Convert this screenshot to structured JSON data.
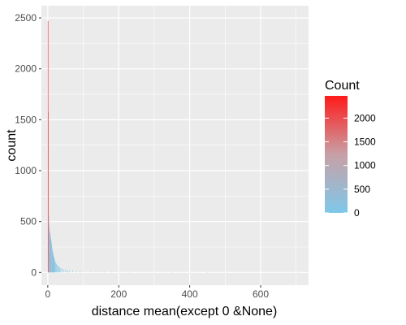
{
  "chart_data": {
    "type": "bar",
    "title": "",
    "xlabel": "distance mean(except 0 &None)",
    "ylabel": "count",
    "xlim": [
      -18,
      735
    ],
    "ylim": [
      -125,
      2620
    ],
    "x_ticks": [
      0,
      200,
      400,
      600
    ],
    "y_ticks": [
      0,
      500,
      1000,
      1500,
      2000,
      2500
    ],
    "x_tick_labels": [
      "0",
      "200",
      "400",
      "600"
    ],
    "y_tick_labels": [
      "0",
      "500",
      "1000",
      "1500",
      "2000",
      "2500"
    ],
    "grid": true,
    "bin_width": 1,
    "x": [
      0,
      1,
      2,
      3,
      4,
      5,
      6,
      7,
      8,
      9,
      10,
      11,
      12,
      13,
      14,
      15,
      16,
      17,
      18,
      19,
      20,
      22,
      24,
      26,
      28,
      30,
      33,
      36,
      40,
      45,
      50,
      55,
      60,
      70,
      80,
      90,
      100,
      120,
      140,
      160,
      180,
      200,
      230,
      260,
      300,
      350,
      400,
      450,
      500,
      700
    ],
    "counts": [
      2470,
      1580,
      560,
      470,
      430,
      400,
      380,
      350,
      330,
      310,
      280,
      260,
      230,
      210,
      190,
      175,
      160,
      145,
      130,
      118,
      108,
      95,
      85,
      75,
      66,
      58,
      50,
      44,
      38,
      32,
      27,
      23,
      20,
      17,
      15,
      13,
      11,
      9,
      8,
      7,
      6,
      5,
      4,
      4,
      3,
      3,
      2,
      2,
      1,
      1
    ],
    "legend": {
      "title": "Count",
      "position": "right",
      "ticks": [
        0,
        500,
        1000,
        1500,
        2000
      ],
      "tick_labels": [
        "0",
        "500",
        "1000",
        "1500",
        "2000"
      ],
      "range": [
        0,
        2470
      ]
    },
    "colors": {
      "low": "#7EC8EA",
      "mid": "#C8A0A6",
      "high": "#FF1A1A",
      "panel": "#EBEBEB",
      "grid": "#FFFFFF"
    }
  }
}
